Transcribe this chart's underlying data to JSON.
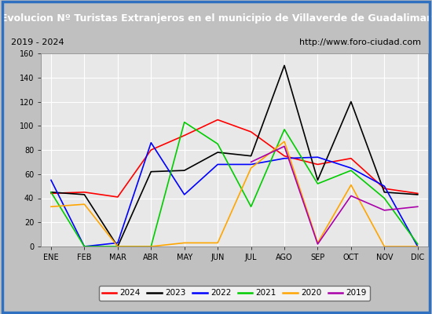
{
  "title": "Evolucion Nº Turistas Extranjeros en el municipio de Villaverde de Guadalimar",
  "subtitle_left": "2019 - 2024",
  "subtitle_right": "http://www.foro-ciudad.com",
  "months": [
    "ENE",
    "FEB",
    "MAR",
    "ABR",
    "MAY",
    "JUN",
    "JUL",
    "AGO",
    "SEP",
    "OCT",
    "NOV",
    "DIC"
  ],
  "series": {
    "2024": {
      "color": "#ff0000",
      "data": [
        44,
        45,
        41,
        80,
        92,
        105,
        95,
        75,
        68,
        73,
        48,
        44
      ]
    },
    "2023": {
      "color": "#000000",
      "data": [
        45,
        43,
        0,
        62,
        63,
        78,
        75,
        150,
        55,
        120,
        45,
        43
      ]
    },
    "2022": {
      "color": "#0000ff",
      "data": [
        55,
        0,
        3,
        86,
        43,
        68,
        68,
        73,
        74,
        65,
        50,
        0
      ]
    },
    "2021": {
      "color": "#00cc00",
      "data": [
        45,
        0,
        0,
        0,
        103,
        85,
        33,
        97,
        52,
        63,
        40,
        2
      ]
    },
    "2020": {
      "color": "#ffa500",
      "data": [
        33,
        35,
        0,
        0,
        3,
        3,
        65,
        87,
        3,
        51,
        0,
        0
      ]
    },
    "2019": {
      "color": "#aa00aa",
      "data": [
        null,
        null,
        null,
        null,
        null,
        null,
        70,
        83,
        2,
        42,
        30,
        33
      ]
    }
  },
  "ylim": [
    0,
    160
  ],
  "yticks": [
    0,
    20,
    40,
    60,
    80,
    100,
    120,
    140,
    160
  ],
  "title_bg": "#2060b0",
  "title_color": "#ffffff",
  "subtitle_bg": "#d8d8d8",
  "plot_bg": "#e8e8e8",
  "outer_bg": "#c0c0c0",
  "grid_color": "#ffffff",
  "border_color": "#3070c0",
  "legend_order": [
    "2024",
    "2023",
    "2022",
    "2021",
    "2020",
    "2019"
  ],
  "title_fontsize": 9,
  "subtitle_fontsize": 8,
  "tick_fontsize": 7,
  "legend_fontsize": 7.5
}
